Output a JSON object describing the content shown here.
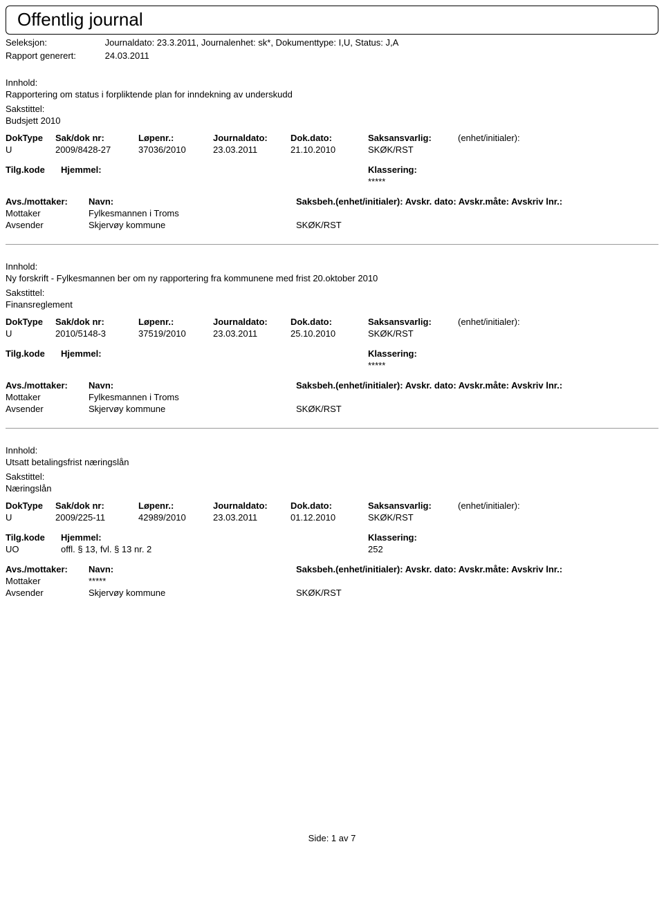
{
  "page": {
    "title": "Offentlig journal",
    "seleksjon_label": "Seleksjon:",
    "seleksjon_value": "Journaldato: 23.3.2011, Journalenhet: sk*, Dokumenttype: I,U, Status: J,A",
    "rapport_label": "Rapport generert:",
    "rapport_value": "24.03.2011",
    "footer": "Side:  1  av  7"
  },
  "labels": {
    "innhold": "Innhold:",
    "sakstittel": "Sakstittel:",
    "doktype": "DokType",
    "sakdok": "Sak/dok nr:",
    "lopenr": "Løpenr.:",
    "journaldato": "Journaldato:",
    "dokdato": "Dok.dato:",
    "saksansvarlig": "Saksansvarlig:",
    "enhet_initialer": "(enhet/initialer):",
    "tilgkode": "Tilg.kode",
    "hjemmel": "Hjemmel:",
    "klassering": "Klassering:",
    "avs_mottaker": "Avs./mottaker:",
    "navn": "Navn:",
    "saksbeh": "Saksbeh.(enhet/initialer): Avskr. dato: Avskr.måte: Avskriv lnr.:"
  },
  "entries": [
    {
      "innhold": "Rapportering om status i forpliktende plan for inndekning av underskudd",
      "sakstittel": "Budsjett 2010",
      "doktype": "U",
      "sakdok": "2009/8428-27",
      "lopenr": "37036/2010",
      "journaldato": "23.03.2011",
      "dokdato": "21.10.2010",
      "saksansvarlig": "SKØK/RST",
      "tilgkode": "",
      "hjemmel": "",
      "klassering": "*****",
      "parties": [
        {
          "role": "Mottaker",
          "navn": "Fylkesmannen i Troms",
          "saksbeh": ""
        },
        {
          "role": "Avsender",
          "navn": "Skjervøy kommune",
          "saksbeh": "SKØK/RST"
        }
      ]
    },
    {
      "innhold": "Ny forskrift - Fylkesmannen ber om ny rapportering fra kommunene med frist 20.oktober 2010",
      "sakstittel": "Finansreglement",
      "doktype": "U",
      "sakdok": "2010/5148-3",
      "lopenr": "37519/2010",
      "journaldato": "23.03.2011",
      "dokdato": "25.10.2010",
      "saksansvarlig": "SKØK/RST",
      "tilgkode": "",
      "hjemmel": "",
      "klassering": "*****",
      "parties": [
        {
          "role": "Mottaker",
          "navn": "Fylkesmannen i Troms",
          "saksbeh": ""
        },
        {
          "role": "Avsender",
          "navn": "Skjervøy kommune",
          "saksbeh": "SKØK/RST"
        }
      ]
    },
    {
      "innhold": "Utsatt betalingsfrist næringslån",
      "sakstittel": "Næringslån",
      "doktype": "U",
      "sakdok": "2009/225-11",
      "lopenr": "42989/2010",
      "journaldato": "23.03.2011",
      "dokdato": "01.12.2010",
      "saksansvarlig": "SKØK/RST",
      "tilgkode": "UO",
      "hjemmel": "offl. § 13, fvl. § 13 nr. 2",
      "klassering": "252",
      "parties": [
        {
          "role": "Mottaker",
          "navn": "*****",
          "saksbeh": ""
        },
        {
          "role": "Avsender",
          "navn": "Skjervøy kommune",
          "saksbeh": "SKØK/RST"
        }
      ]
    }
  ]
}
